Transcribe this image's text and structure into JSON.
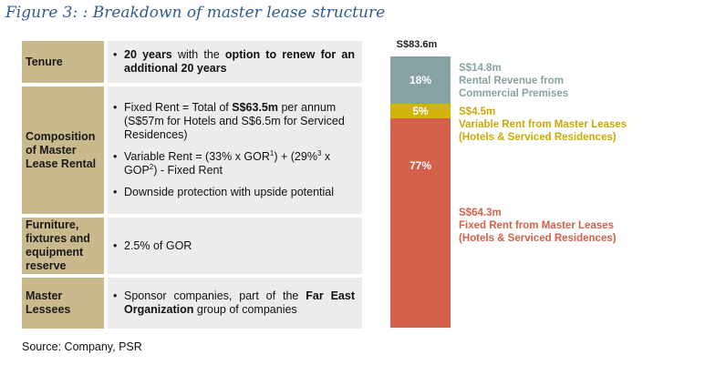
{
  "figure": {
    "title": "Figure 3: : Breakdown of master lease structure",
    "source": "Source: Company, PSR"
  },
  "table": {
    "rows": [
      {
        "label": "Tenure",
        "bullets": [
          {
            "parts": [
              {
                "t": "20 years",
                "b": true
              },
              {
                "t": " with the ",
                "b": false
              },
              {
                "t": "option to renew for an additional 20 years",
                "b": true
              }
            ]
          }
        ]
      },
      {
        "label": "Composition of Master Lease Rental",
        "bullets": [
          {
            "parts": [
              {
                "t": "Fixed Rent = Total of ",
                "b": false
              },
              {
                "t": "S$63.5m",
                "b": true
              },
              {
                "t": " per annum (S$57m for Hotels and S$6.5m for Serviced Residences)",
                "b": false
              }
            ]
          },
          {
            "parts": [
              {
                "t": "Variable Rent = (33% x GOR",
                "b": false
              },
              {
                "t": "1",
                "b": false,
                "sup": true
              },
              {
                "t": ") + (29%",
                "b": false
              },
              {
                "t": "3",
                "b": false,
                "sup": true
              },
              {
                "t": " x GOP",
                "b": false
              },
              {
                "t": "2",
                "b": false,
                "sup": true
              },
              {
                "t": ") - Fixed Rent",
                "b": false
              }
            ]
          },
          {
            "parts": [
              {
                "t": "Downside protection with upside potential",
                "b": false
              }
            ]
          }
        ]
      },
      {
        "label": "Furniture, fixtures and equipment reserve",
        "bullets": [
          {
            "parts": [
              {
                "t": "2.5% of GOR",
                "b": false
              }
            ]
          }
        ]
      },
      {
        "label": "Master Lessees",
        "bullets": [
          {
            "parts": [
              {
                "t": "Sponsor companies, part of the ",
                "b": false
              },
              {
                "t": "Far East Organization",
                "b": true
              },
              {
                "t": " group of companies",
                "b": false
              }
            ]
          }
        ]
      }
    ],
    "bullet_char": "•"
  },
  "chart_data": {
    "type": "bar",
    "stacked": true,
    "total_label": "S$83.6m",
    "total": 83.6,
    "segments": [
      {
        "value": 14.8,
        "percent_label": "18%",
        "amount_label": "S$14.8m",
        "description": [
          "Rental Revenue from",
          "Commercial Premises"
        ],
        "color": "#86a2a2"
      },
      {
        "value": 4.5,
        "percent_label": "5%",
        "amount_label": "S$4.5m",
        "description": [
          "Variable Rent from Master Leases",
          "(Hotels & Serviced Residences)"
        ],
        "color": "#d2b30a"
      },
      {
        "value": 64.3,
        "percent_label": "77%",
        "amount_label": "S$64.3m",
        "description": [
          "Fixed Rent from Master Leases",
          "(Hotels & Serviced Residences)"
        ],
        "color": "#d4604a"
      }
    ]
  }
}
